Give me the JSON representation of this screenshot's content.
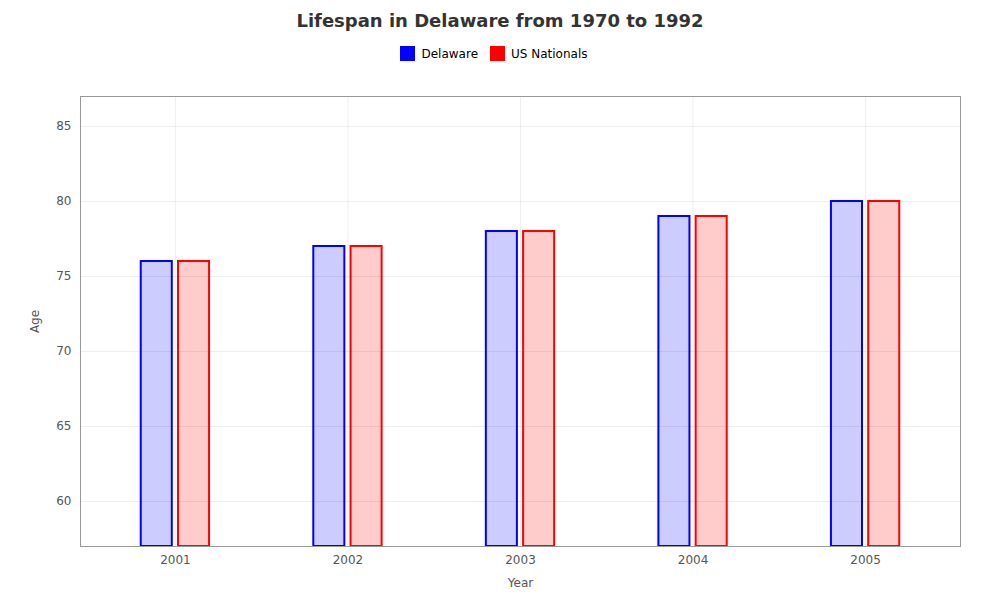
{
  "chart_data": {
    "type": "bar",
    "title": "Lifespan in Delaware from 1970 to 1992",
    "xlabel": "Year",
    "ylabel": "Age",
    "categories": [
      "2001",
      "2002",
      "2003",
      "2004",
      "2005"
    ],
    "series": [
      {
        "name": "Delaware",
        "color": "#0000ff",
        "values": [
          76,
          77,
          78,
          79,
          80
        ]
      },
      {
        "name": "US Nationals",
        "color": "#ff0000",
        "values": [
          76,
          77,
          78,
          79,
          80
        ]
      }
    ],
    "ylim": [
      57,
      87
    ],
    "yticks": [
      60,
      65,
      70,
      75,
      80,
      85
    ],
    "grid": true,
    "legend": "top"
  }
}
